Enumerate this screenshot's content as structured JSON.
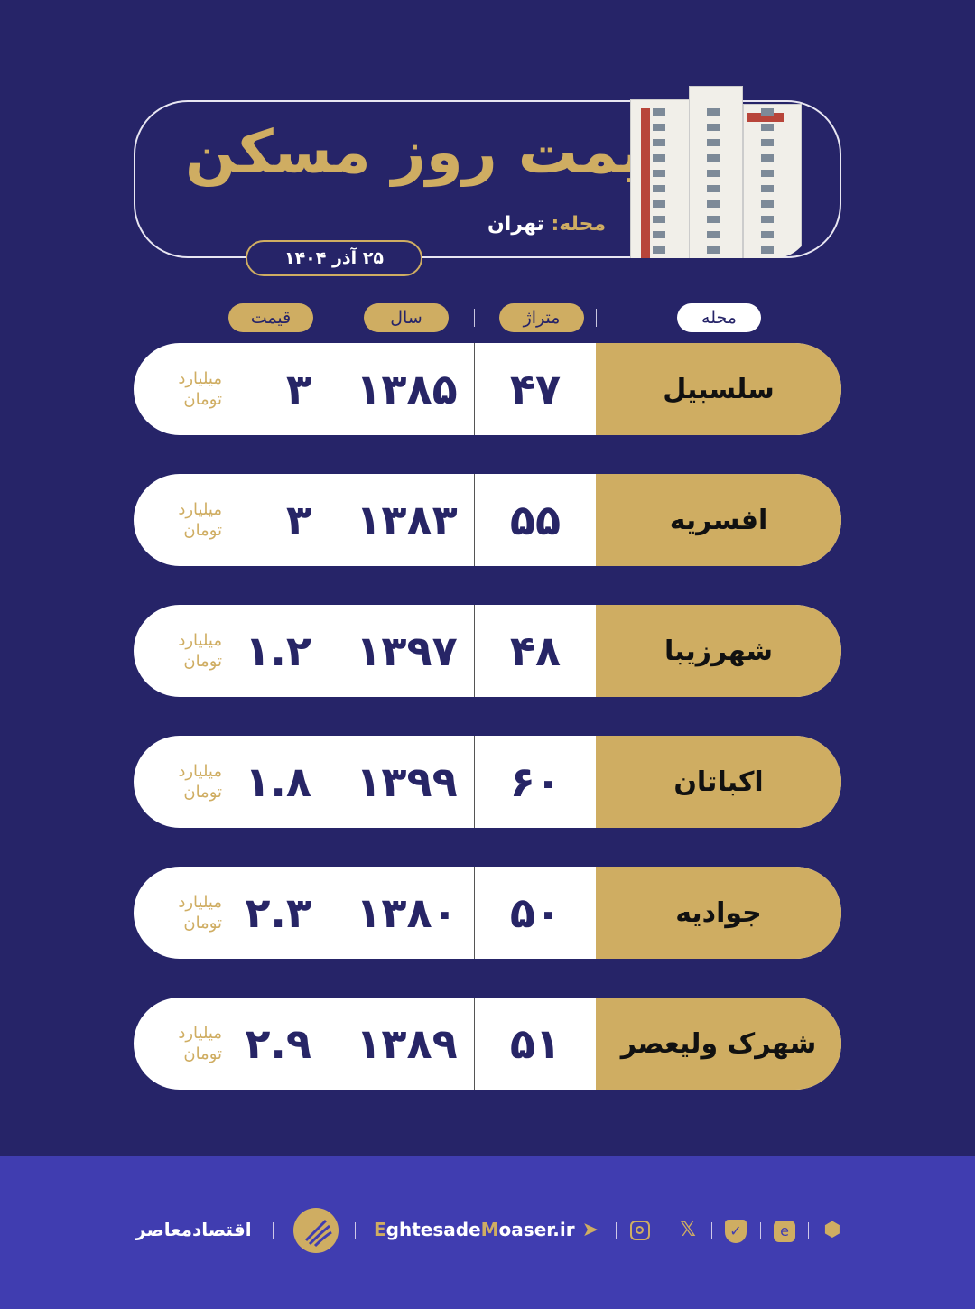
{
  "header": {
    "title": "قیمت روز مسکن",
    "subtitle_key": "محله:",
    "subtitle_value": "تهران",
    "date": "۲۵ آذر ۱۴۰۴"
  },
  "columns": {
    "neighborhood": "محله",
    "area": "متراژ",
    "year": "سال",
    "price": "قیمت"
  },
  "unit": {
    "line1": "میلیارد",
    "line2": "تومان"
  },
  "rows": [
    {
      "neighborhood": "سلسبیل",
      "area": "۴۷",
      "year": "۱۳۸۵",
      "price": "۳"
    },
    {
      "neighborhood": "افسریه",
      "area": "۵۵",
      "year": "۱۳۸۳",
      "price": "۳"
    },
    {
      "neighborhood": "شهرزیبا",
      "area": "۴۸",
      "year": "۱۳۹۷",
      "price": "۱.۲"
    },
    {
      "neighborhood": "اکباتان",
      "area": "۶۰",
      "year": "۱۳۹۹",
      "price": "۱.۸"
    },
    {
      "neighborhood": "جوادیه",
      "area": "۵۰",
      "year": "۱۳۸۰",
      "price": "۲.۳"
    },
    {
      "neighborhood": "شهرک ولیعصر",
      "area": "۵۱",
      "year": "۱۳۸۹",
      "price": "۲.۹"
    }
  ],
  "footer": {
    "brand": "اقتصادمعاصر",
    "website_part1": "E",
    "website_part2": "ghtesade",
    "website_part3": "M",
    "website_part4": "oaser.ir",
    "icons": [
      "telegram-icon",
      "instagram-icon",
      "x-icon",
      "shield-check-icon",
      "eitaa-icon",
      "rubika-icon"
    ]
  },
  "colors": {
    "background": "#262468",
    "gold": "#cfad62",
    "footer": "#403db0"
  }
}
